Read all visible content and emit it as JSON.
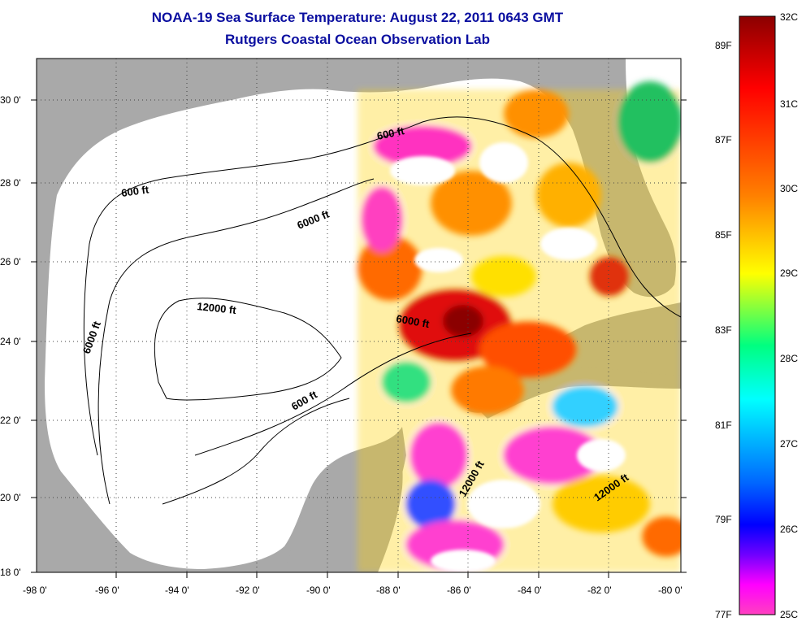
{
  "title": {
    "line1": "NOAA-19 Sea Surface Temperature:  August 22, 2011 0643 GMT",
    "line2": "Rutgers Coastal Ocean Observation Lab"
  },
  "map": {
    "latitude_labels": [
      "30 0'",
      "28 0'",
      "26 0'",
      "24 0'",
      "22 0'",
      "20 0'",
      "18 0'"
    ],
    "longitude_labels": [
      "-98 0'",
      "-96 0'",
      "-94 0'",
      "-92 0'",
      "-90 0'",
      "-88 0'",
      "-86 0'",
      "-84 0'",
      "-82 0'",
      "-80 0'"
    ],
    "contour_labels": [
      "600 ft",
      "600 ft",
      "6000 ft",
      "6000 ft",
      "12000 ft",
      "6000 ft",
      "600 ft",
      "12000 ft",
      "12000 ft"
    ],
    "colors": {
      "land": "#a9a9a9",
      "cloud_mask": "#ffffff",
      "contour": "#000000"
    }
  },
  "colorbar": {
    "celsius_labels": [
      "32C",
      "31C",
      "30C",
      "29C",
      "28C",
      "27C",
      "26C",
      "25C"
    ],
    "fahrenheit_labels": [
      "89F",
      "87F",
      "85F",
      "83F",
      "81F",
      "79F",
      "77F"
    ],
    "range_celsius": [
      25,
      32
    ],
    "gradient": [
      "#8b0000",
      "#ff0000",
      "#ff7a00",
      "#ffff00",
      "#00ff80",
      "#00ffff",
      "#0066ff",
      "#0000ff",
      "#6a00ff",
      "#ff00ff",
      "#ff40c0"
    ]
  }
}
